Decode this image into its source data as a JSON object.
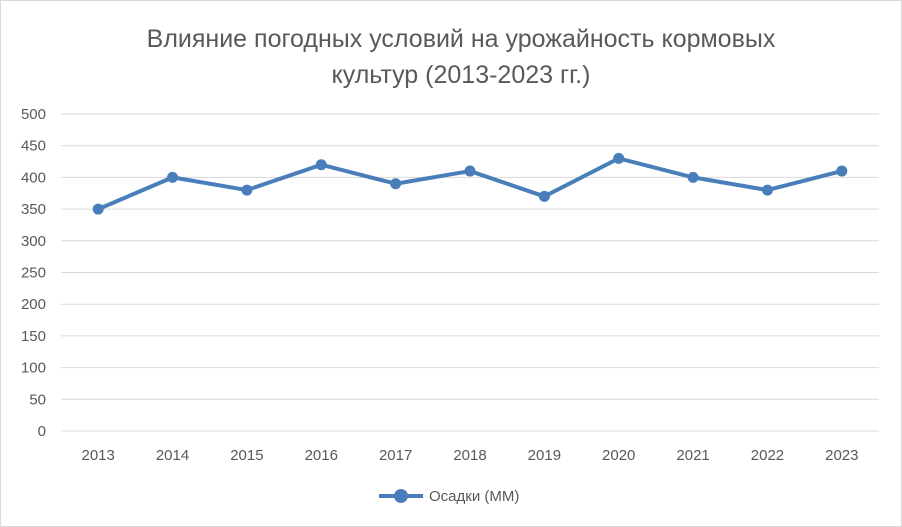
{
  "chart_data": {
    "type": "line",
    "title_lines": [
      "Влияние погодных условий на урожайность кормовых",
      "культур (2013-2023 гг.)"
    ],
    "categories": [
      "2013",
      "2014",
      "2015",
      "2016",
      "2017",
      "2018",
      "2019",
      "2020",
      "2021",
      "2022",
      "2023"
    ],
    "series": [
      {
        "name": "Осадки (ММ)",
        "values": [
          350,
          400,
          380,
          420,
          390,
          410,
          370,
          430,
          400,
          380,
          410
        ],
        "color": "#4a7ebb"
      }
    ],
    "yticks": [
      "0",
      "50",
      "100",
      "150",
      "200",
      "250",
      "300",
      "350",
      "400",
      "450",
      "500"
    ],
    "ylim": [
      0,
      500
    ],
    "grid": true,
    "legend_position": "bottom",
    "gridline_color": "#d9d9d9"
  }
}
